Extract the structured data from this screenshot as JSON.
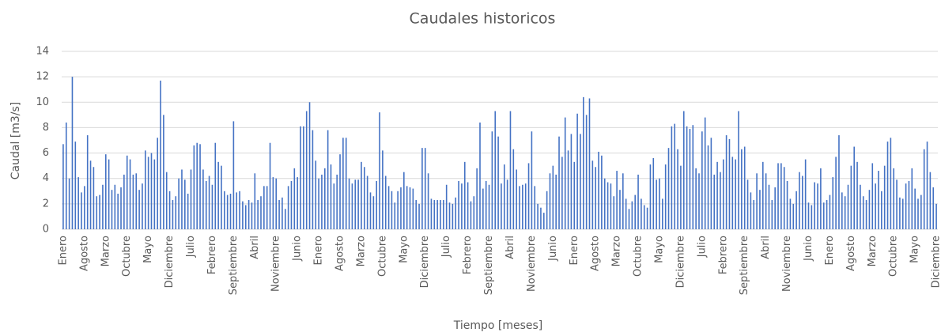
{
  "chart_data": {
    "type": "bar",
    "title": "Caudales historicos",
    "x_label": "Tiempo [meses]",
    "y_label": "Caudal [m3/s]",
    "color": "#4472c4",
    "grid": true,
    "ylim": [
      0,
      14
    ],
    "yticks": [
      0,
      2,
      4,
      6,
      8,
      10,
      12,
      14
    ],
    "categories": [
      "Enero",
      null,
      null,
      null,
      null,
      null,
      null,
      "Agosto",
      null,
      null,
      null,
      null,
      null,
      null,
      "Marzo",
      null,
      null,
      null,
      null,
      null,
      null,
      "Octubre",
      null,
      null,
      null,
      null,
      null,
      null,
      "Mayo",
      null,
      null,
      null,
      null,
      null,
      null,
      "Diciembre",
      null,
      null,
      null,
      null,
      null,
      null,
      "Julio",
      null,
      null,
      null,
      null,
      null,
      null,
      "Febrero",
      null,
      null,
      null,
      null,
      null,
      null,
      "Septiembre",
      null,
      null,
      null,
      null,
      null,
      null,
      "Abril",
      null,
      null,
      null,
      null,
      null,
      null,
      "Noviembre",
      null,
      null,
      null,
      null,
      null,
      null,
      "Junio",
      null,
      null,
      null,
      null,
      null,
      null,
      "Enero",
      null,
      null,
      null,
      null,
      null,
      null,
      "Agosto",
      null,
      null,
      null,
      null,
      null,
      null,
      "Marzo",
      null,
      null,
      null,
      null,
      null,
      null,
      "Octubre",
      null,
      null,
      null,
      null,
      null,
      null,
      "Mayo",
      null,
      null,
      null,
      null,
      null,
      null,
      "Diciembre",
      null,
      null,
      null,
      null,
      null,
      null,
      "Julio",
      null,
      null,
      null,
      null,
      null,
      null,
      "Febrero",
      null,
      null,
      null,
      null,
      null,
      null,
      "Septiembre",
      null,
      null,
      null,
      null,
      null,
      null,
      "Abril",
      null,
      null,
      null,
      null,
      null,
      null,
      "Noviembre",
      null,
      null,
      null,
      null,
      null,
      null,
      "Junio",
      null,
      null,
      null,
      null,
      null,
      null,
      "Enero",
      null,
      null,
      null,
      null,
      null,
      null,
      "Agosto",
      null,
      null,
      null,
      null,
      null,
      null,
      "Marzo",
      null,
      null,
      null,
      null,
      null,
      null,
      "Octubre",
      null,
      null,
      null,
      null,
      null,
      null,
      "Mayo",
      null,
      null,
      null,
      null,
      null,
      null,
      "Diciembre",
      null,
      null,
      null,
      null,
      null,
      null,
      "Julio",
      null,
      null,
      null,
      null,
      null,
      null,
      "Febrero",
      null,
      null,
      null,
      null,
      null,
      null,
      "Septiembre",
      null,
      null,
      null,
      null,
      null,
      null,
      "Abril",
      null,
      null,
      null,
      null,
      null,
      null,
      "Noviembre",
      null,
      null,
      null,
      null,
      null,
      null,
      "Junio",
      null,
      null,
      null,
      null,
      null,
      null,
      "Enero",
      null,
      null,
      null,
      null,
      null,
      null,
      "Agosto",
      null,
      null,
      null,
      null,
      null,
      null,
      "Marzo",
      null,
      null,
      null,
      null,
      null,
      null,
      "Octubre",
      null,
      null,
      null,
      null,
      null,
      null,
      "Mayo",
      null,
      null,
      null,
      null,
      null,
      null,
      "Diciembre"
    ],
    "values": [
      6.7,
      8.4,
      4.0,
      12.0,
      6.9,
      4.1,
      2.9,
      3.4,
      7.4,
      5.4,
      4.9,
      2.6,
      2.7,
      3.5,
      5.9,
      5.5,
      3.1,
      3.5,
      2.8,
      3.3,
      4.3,
      5.8,
      5.5,
      4.3,
      4.4,
      3.1,
      3.6,
      6.2,
      5.7,
      6.0,
      5.5,
      7.2,
      11.7,
      9.0,
      4.5,
      3.0,
      2.3,
      2.6,
      4.0,
      4.7,
      3.9,
      2.8,
      4.7,
      6.6,
      6.8,
      6.7,
      4.7,
      3.8,
      4.2,
      3.5,
      6.8,
      5.3,
      5.0,
      3.0,
      2.7,
      2.8,
      8.5,
      2.9,
      3.0,
      2.2,
      1.9,
      2.3,
      2.1,
      4.4,
      2.3,
      2.6,
      3.4,
      3.4,
      6.8,
      4.1,
      4.0,
      2.3,
      2.5,
      1.6,
      3.4,
      3.8,
      4.8,
      4.1,
      8.1,
      8.1,
      9.3,
      10.0,
      7.8,
      5.4,
      4.0,
      4.3,
      4.8,
      7.8,
      5.1,
      3.6,
      4.3,
      5.9,
      7.2,
      7.2,
      4.0,
      3.6,
      3.9,
      3.9,
      5.3,
      4.9,
      4.2,
      2.9,
      2.6,
      3.8,
      9.2,
      6.2,
      4.2,
      3.4,
      3.0,
      2.1,
      3.0,
      3.3,
      4.5,
      3.4,
      3.3,
      3.2,
      2.3,
      2.0,
      6.4,
      6.4,
      4.4,
      2.4,
      2.3,
      2.3,
      2.3,
      2.3,
      3.5,
      2.1,
      2.0,
      2.5,
      3.8,
      3.6,
      5.3,
      3.7,
      2.2,
      2.6,
      4.8,
      8.4,
      3.2,
      3.8,
      3.5,
      7.7,
      9.3,
      7.3,
      3.6,
      5.1,
      3.9,
      9.3,
      6.3,
      4.7,
      3.4,
      3.5,
      3.6,
      5.2,
      7.7,
      3.4,
      2.0,
      1.7,
      1.3,
      3.0,
      4.4,
      5.0,
      4.3,
      7.3,
      5.7,
      8.8,
      6.2,
      7.5,
      5.3,
      9.1,
      7.5,
      10.4,
      9.0,
      10.3,
      5.4,
      4.9,
      6.1,
      5.8,
      4.0,
      3.7,
      3.6,
      2.6,
      4.6,
      3.1,
      4.4,
      2.4,
      1.6,
      2.2,
      2.7,
      4.3,
      2.4,
      1.9,
      1.7,
      5.1,
      5.6,
      3.9,
      4.0,
      2.4,
      5.1,
      6.4,
      8.1,
      8.3,
      6.3,
      5.0,
      9.3,
      8.1,
      7.9,
      8.2,
      4.8,
      4.4,
      7.7,
      8.8,
      6.6,
      7.2,
      4.3,
      5.3,
      4.5,
      5.5,
      7.4,
      7.1,
      5.7,
      5.5,
      9.3,
      6.3,
      6.5,
      3.9,
      2.9,
      2.3,
      4.4,
      3.1,
      5.3,
      4.4,
      3.5,
      2.3,
      3.3,
      5.2,
      5.2,
      4.9,
      3.8,
      2.4,
      2.0,
      3.0,
      4.5,
      4.2,
      5.5,
      2.1,
      1.9,
      3.7,
      3.6,
      4.8,
      2.1,
      2.3,
      2.7,
      4.1,
      5.7,
      7.4,
      2.9,
      2.6,
      3.5,
      5.0,
      6.5,
      5.3,
      3.5,
      2.6,
      2.3,
      3.1,
      5.2,
      3.6,
      4.6,
      3.0,
      5.0,
      6.9,
      7.2,
      4.8,
      3.9,
      2.5,
      2.4,
      3.6,
      3.8,
      4.8,
      3.2,
      2.4,
      2.7,
      6.3,
      6.9,
      4.5,
      3.3,
      2.0
    ]
  }
}
